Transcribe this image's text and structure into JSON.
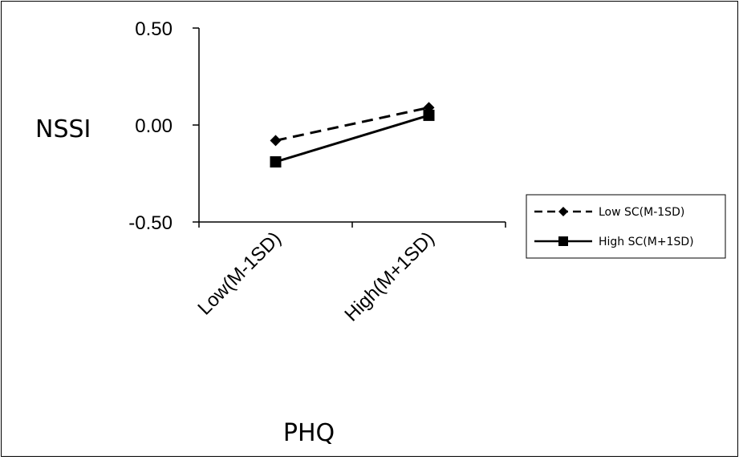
{
  "chart_data": {
    "type": "line",
    "xlabel": "PHQ",
    "ylabel": "NSSI",
    "categories": [
      "Low(M-1SD)",
      "High(M+1SD)"
    ],
    "ylim": [
      -0.5,
      0.5
    ],
    "yticks": [
      "0.50",
      "0.00",
      "-0.50"
    ],
    "grid": false,
    "legend_position": "right",
    "series": [
      {
        "name": "Low SC(M-1SD)",
        "values": [
          -0.08,
          0.09
        ],
        "line": "dashed",
        "marker": "diamond",
        "color": "#000000"
      },
      {
        "name": "High SC(M+1SD)",
        "values": [
          -0.19,
          0.05
        ],
        "line": "solid",
        "marker": "square",
        "color": "#000000"
      }
    ]
  }
}
